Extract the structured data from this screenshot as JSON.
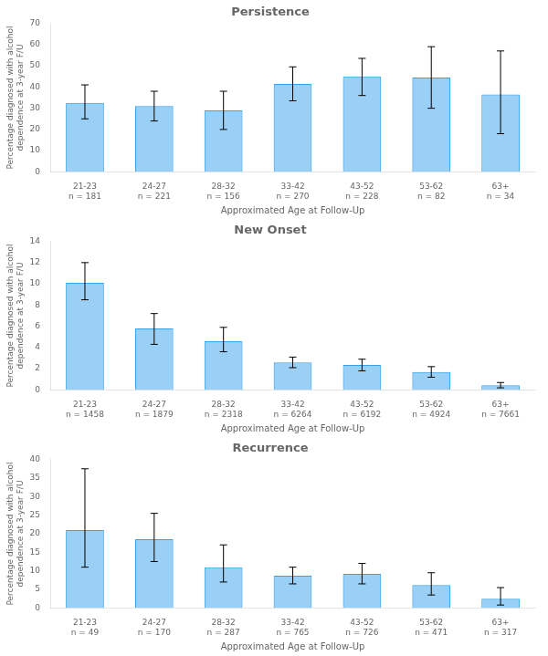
{
  "chart_data": [
    {
      "type": "bar",
      "title": "Persistence",
      "categories": [
        "21-23\nn = 181",
        "24-27\nn = 221",
        "28-32\nn = 156",
        "33-42\nn = 270",
        "43-52\nn = 228",
        "53-62\nn = 82",
        "63+\nn = 34"
      ],
      "values": [
        32.5,
        31.0,
        29.0,
        41.5,
        45.0,
        44.5,
        36.5
      ],
      "ci_lower": [
        25.0,
        24.0,
        20.0,
        33.5,
        36.0,
        30.0,
        18.0
      ],
      "ci_upper": [
        41.0,
        38.0,
        38.0,
        49.5,
        53.5,
        59.0,
        57.0
      ],
      "ylim": [
        0,
        70
      ],
      "yticks": [
        0,
        10,
        20,
        30,
        40,
        50,
        60,
        70
      ],
      "xlabel": "Approximated Age at Follow-Up",
      "ylabel": "Percentage diagnosed with alcohol\ndependence at 3-year F/U",
      "grid": false
    },
    {
      "type": "bar",
      "title": "New Onset",
      "categories": [
        "21-23\nn = 1458",
        "24-27\nn = 1879",
        "28-32\nn = 2318",
        "33-42\nn = 6264",
        "43-52\nn = 6192",
        "53-62\nn = 4924",
        "63+\nn = 7661"
      ],
      "values": [
        10.1,
        5.8,
        4.6,
        2.6,
        2.35,
        1.7,
        0.45
      ],
      "ci_lower": [
        8.5,
        4.3,
        3.6,
        2.1,
        1.8,
        1.2,
        0.2
      ],
      "ci_upper": [
        12.0,
        7.2,
        5.9,
        3.1,
        2.9,
        2.2,
        0.7
      ],
      "ylim": [
        0,
        14
      ],
      "yticks": [
        0,
        2,
        4,
        6,
        8,
        10,
        12,
        14
      ],
      "xlabel": "Approximated Age at Follow-Up",
      "ylabel": "Percentage diagnosed with alcohol\ndependence at 3-year F/U",
      "grid": false
    },
    {
      "type": "bar",
      "title": "Recurrence",
      "categories": [
        "21-23\nn = 49",
        "24-27\nn = 170",
        "28-32\nn = 287",
        "33-42\nn = 765",
        "43-52\nn = 726",
        "53-62\nn = 471",
        "63+\nn = 317"
      ],
      "values": [
        21.0,
        18.5,
        11.0,
        8.7,
        9.2,
        6.2,
        2.5
      ],
      "ci_lower": [
        11.0,
        12.5,
        7.0,
        6.5,
        6.5,
        3.5,
        0.8
      ],
      "ci_upper": [
        37.5,
        25.5,
        17.0,
        11.0,
        12.0,
        9.5,
        5.5
      ],
      "ylim": [
        0,
        40
      ],
      "yticks": [
        0,
        5,
        10,
        15,
        20,
        25,
        30,
        35,
        40
      ],
      "xlabel": "Approximated Age at Follow-Up",
      "ylabel": "Percentage diagnosed with alcohol\ndependence at 3-year F/U",
      "grid": false
    }
  ]
}
